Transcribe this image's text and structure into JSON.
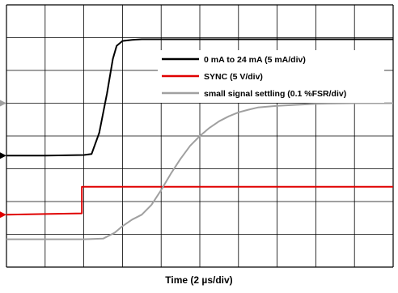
{
  "chart_data": {
    "type": "line",
    "title": "",
    "xlabel": "Time (2 µs/div)",
    "ylabel": "",
    "grid": true,
    "grid_divisions": {
      "x": 10,
      "y": 8
    },
    "xlim": [
      0,
      20
    ],
    "ylim": [
      0,
      8
    ],
    "x_unit": "µs",
    "y_unit": "div",
    "legend_position": "top-right",
    "series": [
      {
        "name": "0 mA to 24 mA (5 mA/div)",
        "color": "#000000",
        "x": [
          0,
          2,
          4,
          4.4,
          4.8,
          5.2,
          5.5,
          5.7,
          6.0,
          6.5,
          7,
          8,
          10,
          12,
          14,
          16,
          18,
          20
        ],
        "y": [
          3.4,
          3.4,
          3.42,
          3.45,
          4.1,
          5.3,
          6.35,
          6.75,
          6.9,
          6.93,
          6.95,
          6.95,
          6.95,
          6.95,
          6.95,
          6.95,
          6.95,
          6.95
        ]
      },
      {
        "name": "SYNC (5 V/div)",
        "color": "#e00000",
        "x": [
          0,
          2,
          3.9,
          3.9,
          6,
          10,
          14,
          18,
          20
        ],
        "y": [
          1.6,
          1.62,
          1.64,
          2.45,
          2.45,
          2.45,
          2.45,
          2.45,
          2.45
        ]
      },
      {
        "name": "small signal settling (0.1 %FSR/div)",
        "color": "#a0a0a0",
        "x": [
          0,
          2,
          4,
          5,
          5.6,
          6.0,
          6.5,
          7.0,
          7.5,
          8.0,
          8.5,
          9.0,
          9.5,
          10.0,
          10.5,
          11.0,
          11.5,
          12.0,
          12.5,
          13.0,
          14.0,
          15.0,
          16.0,
          17.0,
          18.0,
          19.0,
          20.0
        ],
        "y": [
          0.85,
          0.85,
          0.85,
          0.87,
          1.05,
          1.25,
          1.45,
          1.6,
          1.9,
          2.35,
          2.85,
          3.3,
          3.7,
          4.0,
          4.25,
          4.45,
          4.6,
          4.72,
          4.8,
          4.87,
          4.92,
          4.95,
          4.98,
          4.99,
          5.0,
          5.0,
          5.0
        ]
      }
    ],
    "channel_markers": [
      {
        "series": 0,
        "level": 3.4
      },
      {
        "series": 1,
        "level": 1.6
      },
      {
        "series": 2,
        "level": 5.0
      }
    ]
  }
}
